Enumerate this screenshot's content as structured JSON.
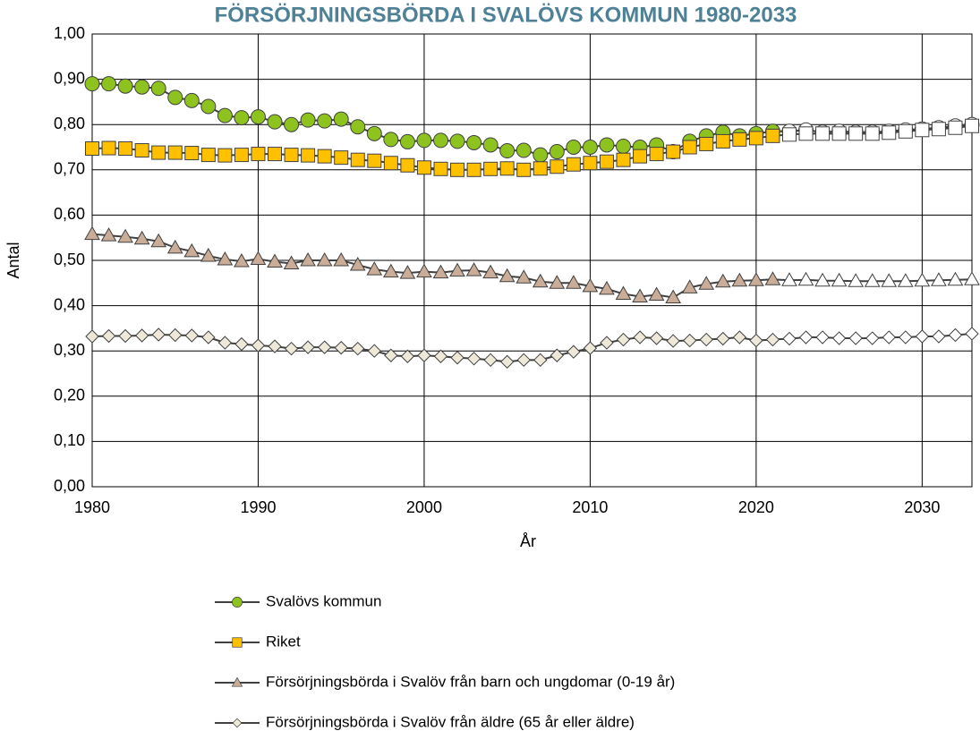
{
  "chart_data": {
    "type": "line",
    "title": "FÖRSÖRJNINGSBÖRDA I SVALÖVS KOMMUN 1980-2033",
    "x_label": "År",
    "y_label": "Antal",
    "x": [
      1980,
      1981,
      1982,
      1983,
      1984,
      1985,
      1986,
      1987,
      1988,
      1989,
      1990,
      1991,
      1992,
      1993,
      1994,
      1995,
      1996,
      1997,
      1998,
      1999,
      2000,
      2001,
      2002,
      2003,
      2004,
      2005,
      2006,
      2007,
      2008,
      2009,
      2010,
      2011,
      2012,
      2013,
      2014,
      2015,
      2016,
      2017,
      2018,
      2019,
      2020,
      2021,
      2022,
      2023,
      2024,
      2025,
      2026,
      2027,
      2028,
      2029,
      2030,
      2031,
      2032,
      2033
    ],
    "xlim": [
      1980,
      2033
    ],
    "xticks": [
      1980,
      1990,
      2000,
      2010,
      2020,
      2030
    ],
    "ylim": [
      0,
      1
    ],
    "yticks": [
      {
        "value": 0,
        "label": "0,00"
      },
      {
        "value": 0.1,
        "label": "0,10"
      },
      {
        "value": 0.2,
        "label": "0,20"
      },
      {
        "value": 0.3,
        "label": "0,30"
      },
      {
        "value": 0.4,
        "label": "0,40"
      },
      {
        "value": 0.5,
        "label": "0,50"
      },
      {
        "value": 0.6,
        "label": "0,60"
      },
      {
        "value": 0.7,
        "label": "0,70"
      },
      {
        "value": 0.8,
        "label": "0,80"
      },
      {
        "value": 0.9,
        "label": "0,90"
      },
      {
        "value": 1,
        "label": "1,00"
      }
    ],
    "grid": true,
    "legend": "bottom",
    "forecast_start": 2022,
    "forecast_marker_color": "#ffffff",
    "series": [
      {
        "name": "Svalövs kommun",
        "marker": "circle",
        "color": "#8dc21f",
        "line_color": "#404040",
        "values": [
          0.89,
          0.89,
          0.885,
          0.883,
          0.88,
          0.86,
          0.853,
          0.84,
          0.82,
          0.815,
          0.817,
          0.806,
          0.8,
          0.81,
          0.808,
          0.812,
          0.795,
          0.78,
          0.767,
          0.762,
          0.765,
          0.765,
          0.763,
          0.76,
          0.755,
          0.742,
          0.743,
          0.733,
          0.74,
          0.75,
          0.75,
          0.755,
          0.752,
          0.75,
          0.755,
          0.74,
          0.763,
          0.775,
          0.783,
          0.775,
          0.78,
          0.785,
          0.785,
          0.788,
          0.783,
          0.785,
          0.783,
          0.783,
          0.785,
          0.788,
          0.79,
          0.793,
          0.797,
          0.8
        ]
      },
      {
        "name": "Riket",
        "marker": "square",
        "color": "#ffc000",
        "line_color": "#404040",
        "values": [
          0.747,
          0.748,
          0.747,
          0.743,
          0.738,
          0.738,
          0.737,
          0.733,
          0.732,
          0.733,
          0.735,
          0.735,
          0.733,
          0.732,
          0.73,
          0.727,
          0.722,
          0.72,
          0.715,
          0.71,
          0.705,
          0.702,
          0.7,
          0.7,
          0.702,
          0.703,
          0.7,
          0.703,
          0.707,
          0.712,
          0.715,
          0.718,
          0.722,
          0.73,
          0.735,
          0.74,
          0.75,
          0.757,
          0.763,
          0.767,
          0.77,
          0.775,
          0.778,
          0.78,
          0.78,
          0.78,
          0.78,
          0.78,
          0.782,
          0.785,
          0.788,
          0.79,
          0.793,
          0.797
        ]
      },
      {
        "name": "Försörjningsbörda i Svalöv från barn och ungdomar (0-19 år)",
        "marker": "triangle",
        "color": "#c9ad98",
        "line_color": "#404040",
        "values": [
          0.558,
          0.555,
          0.552,
          0.548,
          0.542,
          0.528,
          0.52,
          0.51,
          0.502,
          0.498,
          0.503,
          0.497,
          0.493,
          0.5,
          0.5,
          0.5,
          0.49,
          0.48,
          0.475,
          0.472,
          0.475,
          0.473,
          0.477,
          0.478,
          0.473,
          0.465,
          0.462,
          0.453,
          0.45,
          0.45,
          0.443,
          0.437,
          0.426,
          0.42,
          0.424,
          0.418,
          0.44,
          0.448,
          0.453,
          0.455,
          0.456,
          0.458,
          0.456,
          0.457,
          0.455,
          0.455,
          0.454,
          0.454,
          0.454,
          0.454,
          0.455,
          0.456,
          0.457,
          0.458
        ]
      },
      {
        "name": "Försörjningsbörda i Svalöv från äldre (65 år eller äldre)",
        "marker": "diamond",
        "color": "#ede8d8",
        "line_color": "#404040",
        "values": [
          0.332,
          0.333,
          0.333,
          0.334,
          0.336,
          0.335,
          0.334,
          0.33,
          0.318,
          0.315,
          0.312,
          0.31,
          0.305,
          0.308,
          0.308,
          0.307,
          0.305,
          0.3,
          0.29,
          0.288,
          0.29,
          0.288,
          0.285,
          0.283,
          0.28,
          0.276,
          0.28,
          0.28,
          0.29,
          0.298,
          0.306,
          0.318,
          0.325,
          0.33,
          0.328,
          0.322,
          0.323,
          0.325,
          0.327,
          0.33,
          0.323,
          0.325,
          0.327,
          0.33,
          0.33,
          0.328,
          0.328,
          0.328,
          0.33,
          0.33,
          0.332,
          0.332,
          0.335,
          0.338
        ]
      }
    ]
  }
}
